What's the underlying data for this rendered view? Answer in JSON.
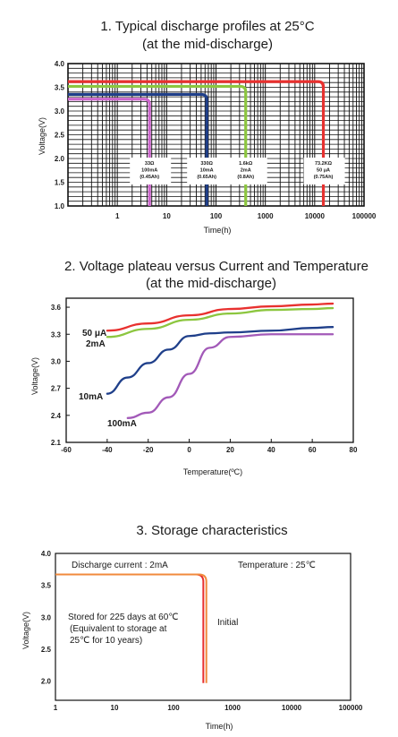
{
  "chart_data": [
    {
      "type": "line",
      "title": "1. Typical discharge profiles at 25°C",
      "subtitle": "(at the mid-discharge)",
      "xlabel": "Time(h)",
      "ylabel": "Voltage(V)",
      "x_scale": "log",
      "xlim": [
        0.1,
        100000
      ],
      "ylim": [
        1.0,
        4.0
      ],
      "x_ticks": [
        "1",
        "10",
        "100",
        "1000",
        "10000",
        "100000"
      ],
      "y_ticks": [
        "1.0",
        "1.5",
        "2.0",
        "2.5",
        "3.0",
        "3.5",
        "4.0"
      ],
      "series": [
        {
          "color": "#cc66cc",
          "level": 3.25,
          "end_x": 4.5,
          "annotation": [
            "33Ω",
            "100mA",
            "(0.45Ah)"
          ]
        },
        {
          "color": "#1f3f8a",
          "level": 3.35,
          "end_x": 65,
          "annotation": [
            "330Ω",
            "10mA",
            "(0.65Ah)"
          ]
        },
        {
          "color": "#8cc63f",
          "level": 3.52,
          "end_x": 400,
          "annotation": [
            "1.6kΩ",
            "2mA",
            "(0.8Ah)"
          ]
        },
        {
          "color": "#e8312f",
          "level": 3.62,
          "end_x": 15000,
          "annotation": [
            "73.2KΩ",
            "50 μA",
            "(0.75Ah)"
          ]
        }
      ]
    },
    {
      "type": "line",
      "title": "2. Voltage plateau versus Current and Temperature",
      "subtitle": "(at the mid-discharge)",
      "xlabel": "Temperature(ºC)",
      "ylabel": "Voltage(V)",
      "xlim": [
        -60,
        80
      ],
      "ylim": [
        2.1,
        3.7
      ],
      "x_ticks": [
        "-60",
        "-40",
        "-20",
        "0",
        "20",
        "40",
        "60",
        "80"
      ],
      "y_ticks": [
        "2.1",
        "2.4",
        "2.7",
        "3.0",
        "3.3",
        "3.6"
      ],
      "series": [
        {
          "name": "50 μA",
          "color": "#e8312f",
          "x": [
            -40,
            -20,
            0,
            20,
            40,
            60,
            70
          ],
          "y": [
            3.34,
            3.42,
            3.51,
            3.58,
            3.61,
            3.63,
            3.64
          ]
        },
        {
          "name": "2mA",
          "color": "#8cc63f",
          "x": [
            -40,
            -20,
            0,
            20,
            40,
            60,
            70
          ],
          "y": [
            3.27,
            3.36,
            3.46,
            3.53,
            3.57,
            3.58,
            3.59
          ]
        },
        {
          "name": "10mA",
          "color": "#1f3f8a",
          "x": [
            -40,
            -30,
            -20,
            -10,
            0,
            10,
            20,
            40,
            60,
            70
          ],
          "y": [
            2.64,
            2.82,
            2.98,
            3.13,
            3.28,
            3.31,
            3.32,
            3.34,
            3.37,
            3.38
          ]
        },
        {
          "name": "100mA",
          "color": "#a259b8",
          "x": [
            -30,
            -20,
            -10,
            0,
            10,
            20,
            40,
            60,
            70
          ],
          "y": [
            2.37,
            2.43,
            2.6,
            2.86,
            3.15,
            3.27,
            3.3,
            3.3,
            3.3
          ]
        }
      ]
    },
    {
      "type": "line",
      "title": "3. Storage characteristics",
      "xlabel": "Time(h)",
      "ylabel": "Voltage(V)",
      "x_scale": "log",
      "xlim": [
        1,
        100000
      ],
      "ylim": [
        1.7,
        4.0
      ],
      "x_ticks": [
        "1",
        "10",
        "100",
        "1000",
        "10000",
        "100000"
      ],
      "y_ticks": [
        "2.0",
        "2.5",
        "3.0",
        "3.5",
        "4.0"
      ],
      "notes": {
        "discharge_current": "Discharge current : 2mA",
        "temperature": "Temperature : 25℃",
        "stored_line1": "Stored for 225 days at 60℃",
        "stored_line2": "(Equivalent to storage at",
        "stored_line3": "25℃ for 10 years)",
        "initial": "Initial"
      },
      "series": [
        {
          "color": "#e8312f",
          "level": 3.67,
          "end_x": 320
        },
        {
          "color": "#f08a3c",
          "level": 3.67,
          "end_x": 360
        }
      ]
    }
  ]
}
